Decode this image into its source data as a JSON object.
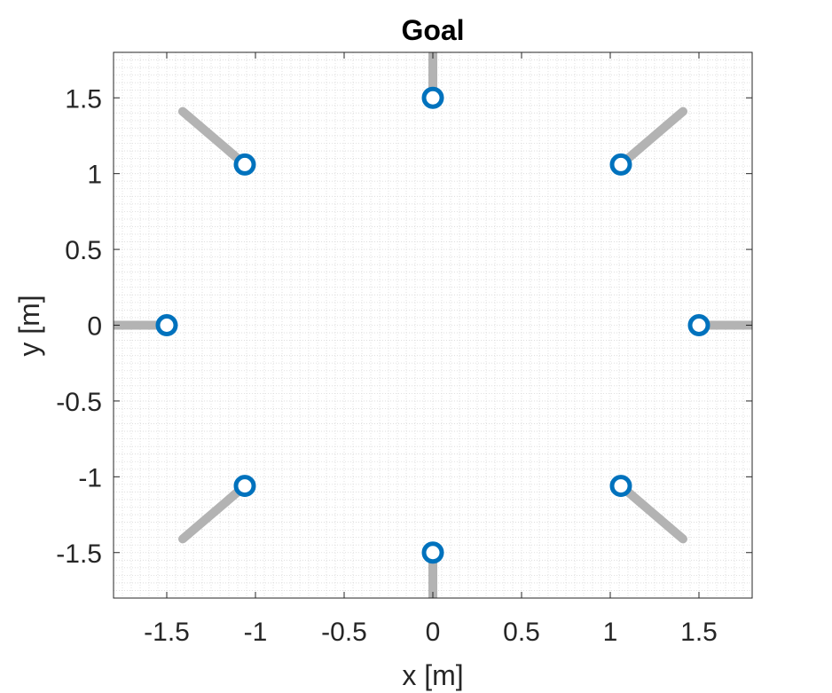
{
  "chart_data": {
    "type": "scatter",
    "title": "Goal",
    "xlabel": "x [m]",
    "ylabel": "y [m]",
    "xlim": [
      -1.8,
      1.8
    ],
    "ylim": [
      -1.8,
      1.8
    ],
    "xticks": [
      -1.5,
      -1,
      -0.5,
      0,
      0.5,
      1,
      1.5
    ],
    "yticks": [
      -1.5,
      -1,
      -0.5,
      0,
      0.5,
      1,
      1.5
    ],
    "xtick_labels": [
      "-1.5",
      "-1",
      "-0.5",
      "0",
      "0.5",
      "1",
      "1.5"
    ],
    "ytick_labels": [
      "-1.5",
      "-1",
      "-0.5",
      "0",
      "0.5",
      "1",
      "1.5"
    ],
    "grid": "minor dotted",
    "series": [
      {
        "marker": "circle-open",
        "color": "#0072BD",
        "points": [
          [
            1.5,
            0
          ],
          [
            1.06,
            1.06
          ],
          [
            0,
            1.5
          ],
          [
            -1.06,
            1.06
          ],
          [
            -1.5,
            0
          ],
          [
            -1.06,
            -1.06
          ],
          [
            0,
            -1.5
          ],
          [
            1.06,
            -1.06
          ]
        ]
      }
    ],
    "segments": {
      "color": "#B3B3B3",
      "lines": [
        [
          [
            1.5,
            0
          ],
          [
            1.8,
            0
          ]
        ],
        [
          [
            1.06,
            1.06
          ],
          [
            1.41,
            1.41
          ]
        ],
        [
          [
            0,
            1.5
          ],
          [
            0,
            1.8
          ]
        ],
        [
          [
            -1.06,
            1.06
          ],
          [
            -1.41,
            1.41
          ]
        ],
        [
          [
            -1.5,
            0
          ],
          [
            -1.8,
            0
          ]
        ],
        [
          [
            -1.06,
            -1.06
          ],
          [
            -1.41,
            -1.41
          ]
        ],
        [
          [
            0,
            -1.5
          ],
          [
            0,
            -1.8
          ]
        ],
        [
          [
            1.06,
            -1.06
          ],
          [
            1.41,
            -1.41
          ]
        ]
      ]
    }
  }
}
